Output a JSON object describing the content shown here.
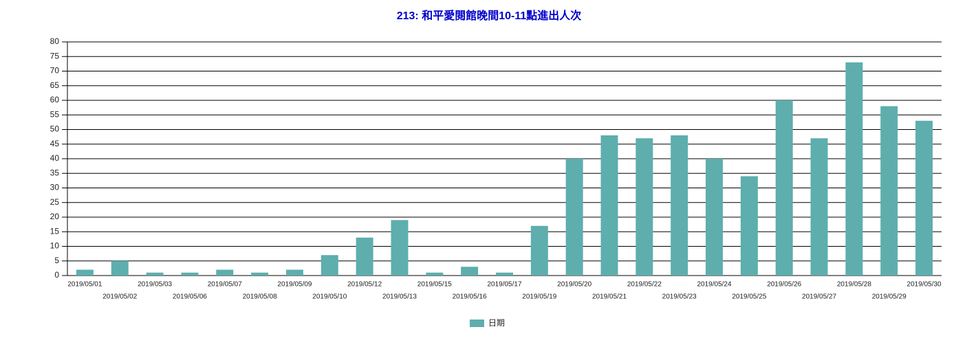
{
  "chart_data": {
    "type": "bar",
    "title": "213: 和平愛閱館晚間10-11點進出人次",
    "categories": [
      "2019/05/01",
      "2019/05/02",
      "2019/05/03",
      "2019/05/06",
      "2019/05/07",
      "2019/05/08",
      "2019/05/09",
      "2019/05/10",
      "2019/05/12",
      "2019/05/13",
      "2019/05/15",
      "2019/05/16",
      "2019/05/17",
      "2019/05/19",
      "2019/05/20",
      "2019/05/21",
      "2019/05/22",
      "2019/05/23",
      "2019/05/24",
      "2019/05/25",
      "2019/05/26",
      "2019/05/27",
      "2019/05/28",
      "2019/05/29",
      "2019/05/30"
    ],
    "series": [
      {
        "name": "日期",
        "color": "#5eaeae",
        "values": [
          2,
          5,
          1,
          1,
          2,
          1,
          2,
          7,
          13,
          19,
          1,
          3,
          1,
          17,
          40,
          48,
          47,
          48,
          40,
          34,
          60,
          47,
          73,
          58,
          53
        ]
      }
    ],
    "ylim": [
      0,
      80
    ],
    "yticks": [
      0,
      5,
      10,
      15,
      20,
      25,
      30,
      35,
      40,
      45,
      50,
      55,
      60,
      65,
      70,
      75,
      80
    ],
    "grid": true
  }
}
